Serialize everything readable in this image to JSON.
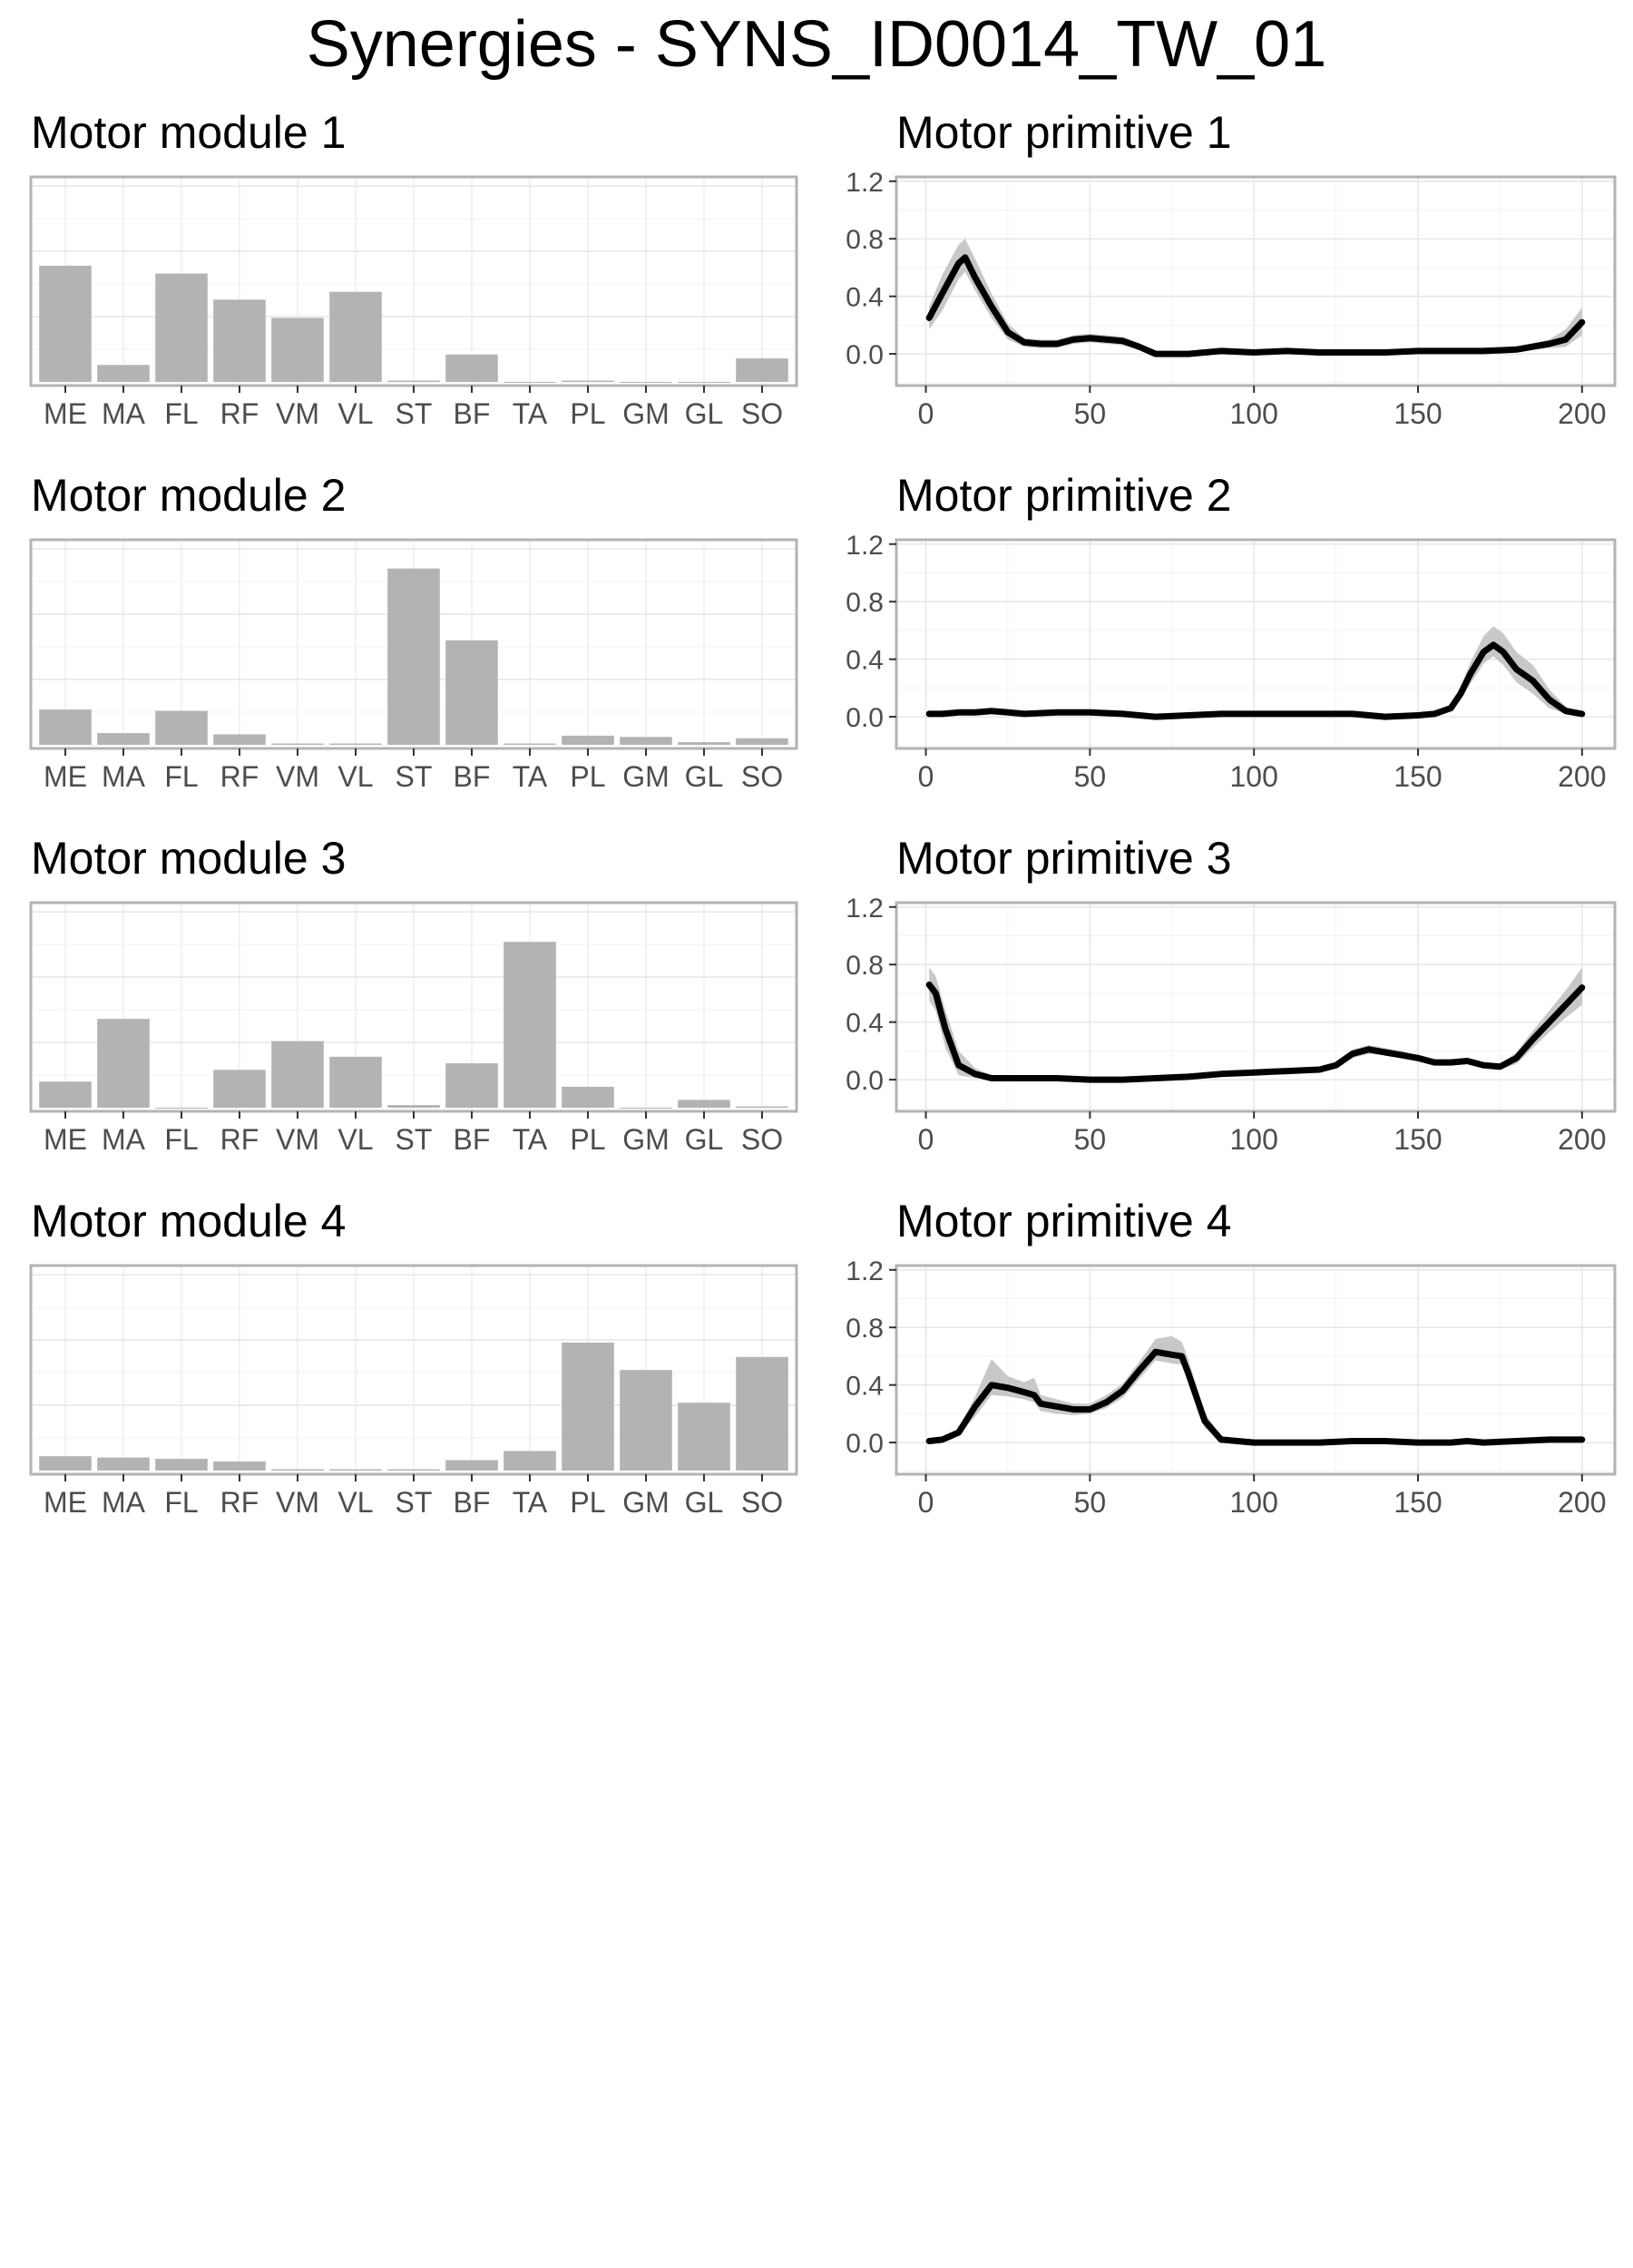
{
  "title": "Synergies - SYNS_ID0014_TW_01",
  "colors": {
    "bar": "#b3b3b3",
    "line": "#000000",
    "band": "#c8c8c8",
    "panel_border": "#b3b3b3",
    "grid_major": "#e6e6e6",
    "grid_minor": "#f2f2f2",
    "tick_text": "#4d4d4d"
  },
  "chart_data": [
    {
      "type": "bar",
      "title": "Motor module 1",
      "categories": [
        "ME",
        "MA",
        "FL",
        "RF",
        "VM",
        "VL",
        "ST",
        "BF",
        "TA",
        "PL",
        "GM",
        "GL",
        "SO"
      ],
      "values": [
        0.89,
        0.13,
        0.83,
        0.63,
        0.49,
        0.69,
        0.01,
        0.21,
        0.0,
        0.01,
        0.0,
        0.0,
        0.18
      ],
      "ylim": [
        0,
        1.57
      ],
      "grid": true
    },
    {
      "type": "line",
      "title": "Motor primitive 1",
      "x": [
        1,
        5,
        10,
        12,
        15,
        20,
        25,
        30,
        35,
        40,
        45,
        50,
        55,
        60,
        65,
        70,
        80,
        90,
        100,
        110,
        120,
        130,
        140,
        150,
        160,
        170,
        180,
        190,
        195,
        200
      ],
      "y": [
        0.25,
        0.42,
        0.63,
        0.67,
        0.53,
        0.33,
        0.15,
        0.08,
        0.07,
        0.07,
        0.1,
        0.11,
        0.1,
        0.09,
        0.05,
        0.0,
        0.0,
        0.02,
        0.01,
        0.02,
        0.01,
        0.01,
        0.01,
        0.02,
        0.02,
        0.02,
        0.03,
        0.07,
        0.1,
        0.22
      ],
      "band_low": [
        0.17,
        0.3,
        0.52,
        0.57,
        0.44,
        0.25,
        0.1,
        0.05,
        0.04,
        0.04,
        0.07,
        0.08,
        0.07,
        0.06,
        0.03,
        0.0,
        0.0,
        0.01,
        0.0,
        0.01,
        0.0,
        0.0,
        0.0,
        0.01,
        0.01,
        0.01,
        0.02,
        0.04,
        0.05,
        0.13
      ],
      "band_high": [
        0.33,
        0.55,
        0.76,
        0.8,
        0.66,
        0.42,
        0.21,
        0.11,
        0.1,
        0.1,
        0.13,
        0.14,
        0.13,
        0.12,
        0.07,
        0.01,
        0.01,
        0.03,
        0.02,
        0.03,
        0.02,
        0.02,
        0.02,
        0.03,
        0.03,
        0.03,
        0.05,
        0.1,
        0.17,
        0.32
      ],
      "xlim": [
        -9,
        210
      ],
      "ylim": [
        -0.22,
        1.23
      ],
      "xticks": [
        "0",
        "50",
        "100",
        "150",
        "200"
      ],
      "yticks": [
        "0.0",
        "0.4",
        "0.8",
        "1.2"
      ],
      "grid": true
    },
    {
      "type": "bar",
      "title": "Motor module 2",
      "categories": [
        "ME",
        "MA",
        "FL",
        "RF",
        "VM",
        "VL",
        "ST",
        "BF",
        "TA",
        "PL",
        "GM",
        "GL",
        "SO"
      ],
      "values": [
        0.27,
        0.09,
        0.26,
        0.08,
        0.01,
        0.01,
        1.35,
        0.8,
        0.01,
        0.07,
        0.06,
        0.02,
        0.05
      ],
      "ylim": [
        0,
        1.57
      ],
      "grid": true
    },
    {
      "type": "line",
      "title": "Motor primitive 2",
      "x": [
        1,
        5,
        10,
        15,
        20,
        25,
        30,
        40,
        50,
        60,
        70,
        80,
        90,
        100,
        110,
        120,
        130,
        140,
        150,
        155,
        160,
        163,
        166,
        170,
        173,
        176,
        180,
        185,
        190,
        195,
        200
      ],
      "y": [
        0.02,
        0.02,
        0.03,
        0.03,
        0.04,
        0.03,
        0.02,
        0.03,
        0.03,
        0.02,
        0.0,
        0.01,
        0.02,
        0.02,
        0.02,
        0.02,
        0.02,
        0.0,
        0.01,
        0.02,
        0.06,
        0.16,
        0.3,
        0.45,
        0.5,
        0.45,
        0.33,
        0.25,
        0.12,
        0.04,
        0.02
      ],
      "band_low": [
        0.01,
        0.01,
        0.02,
        0.02,
        0.03,
        0.02,
        0.01,
        0.02,
        0.02,
        0.01,
        0.0,
        0.0,
        0.01,
        0.01,
        0.01,
        0.01,
        0.01,
        0.0,
        0.0,
        0.01,
        0.04,
        0.12,
        0.23,
        0.37,
        0.42,
        0.36,
        0.24,
        0.16,
        0.06,
        0.02,
        0.01
      ],
      "band_high": [
        0.03,
        0.03,
        0.04,
        0.05,
        0.06,
        0.04,
        0.03,
        0.04,
        0.04,
        0.03,
        0.01,
        0.02,
        0.03,
        0.03,
        0.03,
        0.03,
        0.03,
        0.01,
        0.02,
        0.03,
        0.08,
        0.21,
        0.38,
        0.56,
        0.63,
        0.58,
        0.45,
        0.36,
        0.19,
        0.07,
        0.04
      ],
      "xlim": [
        -9,
        210
      ],
      "ylim": [
        -0.22,
        1.23
      ],
      "xticks": [
        "0",
        "50",
        "100",
        "150",
        "200"
      ],
      "yticks": [
        "0.0",
        "0.4",
        "0.8",
        "1.2"
      ],
      "grid": true
    },
    {
      "type": "bar",
      "title": "Motor module 3",
      "categories": [
        "ME",
        "MA",
        "FL",
        "RF",
        "VM",
        "VL",
        "ST",
        "BF",
        "TA",
        "PL",
        "GM",
        "GL",
        "SO"
      ],
      "values": [
        0.2,
        0.68,
        0.0,
        0.29,
        0.51,
        0.39,
        0.02,
        0.34,
        1.27,
        0.16,
        0.0,
        0.06,
        0.01
      ],
      "ylim": [
        0,
        1.57
      ],
      "grid": true
    },
    {
      "type": "line",
      "title": "Motor primitive 3",
      "x": [
        1,
        3,
        6,
        10,
        15,
        20,
        30,
        40,
        50,
        60,
        70,
        80,
        90,
        100,
        110,
        120,
        125,
        130,
        135,
        140,
        145,
        150,
        155,
        160,
        165,
        170,
        175,
        180,
        185,
        190,
        195,
        200
      ],
      "y": [
        0.66,
        0.6,
        0.35,
        0.1,
        0.04,
        0.01,
        0.01,
        0.01,
        0.0,
        0.0,
        0.01,
        0.02,
        0.04,
        0.05,
        0.06,
        0.07,
        0.1,
        0.18,
        0.21,
        0.19,
        0.17,
        0.15,
        0.12,
        0.12,
        0.13,
        0.1,
        0.09,
        0.15,
        0.28,
        0.4,
        0.52,
        0.64
      ],
      "band_low": [
        0.55,
        0.48,
        0.22,
        0.03,
        0.01,
        0.0,
        0.0,
        0.0,
        0.0,
        0.0,
        0.0,
        0.01,
        0.03,
        0.04,
        0.05,
        0.06,
        0.08,
        0.15,
        0.18,
        0.17,
        0.15,
        0.13,
        0.1,
        0.1,
        0.11,
        0.08,
        0.07,
        0.11,
        0.22,
        0.33,
        0.43,
        0.52
      ],
      "band_high": [
        0.78,
        0.72,
        0.48,
        0.2,
        0.08,
        0.03,
        0.02,
        0.02,
        0.01,
        0.01,
        0.02,
        0.03,
        0.05,
        0.06,
        0.07,
        0.08,
        0.12,
        0.21,
        0.24,
        0.22,
        0.2,
        0.17,
        0.14,
        0.14,
        0.15,
        0.12,
        0.11,
        0.19,
        0.34,
        0.48,
        0.62,
        0.78
      ],
      "xlim": [
        -9,
        210
      ],
      "ylim": [
        -0.22,
        1.23
      ],
      "xticks": [
        "0",
        "50",
        "100",
        "150",
        "200"
      ],
      "yticks": [
        "0.0",
        "0.4",
        "0.8",
        "1.2"
      ],
      "grid": true
    },
    {
      "type": "bar",
      "title": "Motor module 4",
      "categories": [
        "ME",
        "MA",
        "FL",
        "RF",
        "VM",
        "VL",
        "ST",
        "BF",
        "TA",
        "PL",
        "GM",
        "GL",
        "SO"
      ],
      "values": [
        0.11,
        0.1,
        0.09,
        0.07,
        0.01,
        0.01,
        0.01,
        0.08,
        0.15,
        0.98,
        0.77,
        0.52,
        0.87
      ],
      "ylim": [
        0,
        1.57
      ],
      "grid": true
    },
    {
      "type": "line",
      "title": "Motor primitive 4",
      "x": [
        1,
        5,
        10,
        15,
        20,
        25,
        30,
        33,
        35,
        40,
        45,
        50,
        55,
        60,
        65,
        70,
        75,
        78,
        80,
        85,
        90,
        95,
        100,
        110,
        120,
        130,
        140,
        150,
        160,
        165,
        170,
        180,
        190,
        200
      ],
      "y": [
        0.01,
        0.02,
        0.07,
        0.25,
        0.4,
        0.38,
        0.35,
        0.33,
        0.27,
        0.25,
        0.23,
        0.23,
        0.28,
        0.36,
        0.5,
        0.63,
        0.61,
        0.6,
        0.48,
        0.15,
        0.02,
        0.01,
        0.0,
        0.0,
        0.0,
        0.01,
        0.01,
        0.0,
        0.0,
        0.01,
        0.0,
        0.01,
        0.02,
        0.02
      ],
      "band_low": [
        0.0,
        0.01,
        0.05,
        0.18,
        0.33,
        0.32,
        0.3,
        0.28,
        0.22,
        0.2,
        0.19,
        0.2,
        0.24,
        0.31,
        0.44,
        0.57,
        0.55,
        0.54,
        0.42,
        0.1,
        0.01,
        0.0,
        0.0,
        0.0,
        0.0,
        0.0,
        0.0,
        0.0,
        0.0,
        0.0,
        0.0,
        0.0,
        0.01,
        0.01
      ],
      "band_high": [
        0.02,
        0.03,
        0.09,
        0.32,
        0.58,
        0.46,
        0.42,
        0.45,
        0.33,
        0.3,
        0.27,
        0.27,
        0.33,
        0.41,
        0.56,
        0.72,
        0.74,
        0.7,
        0.58,
        0.21,
        0.04,
        0.02,
        0.01,
        0.01,
        0.01,
        0.02,
        0.02,
        0.01,
        0.01,
        0.02,
        0.01,
        0.02,
        0.03,
        0.03
      ],
      "xlim": [
        -9,
        210
      ],
      "ylim": [
        -0.22,
        1.23
      ],
      "xticks": [
        "0",
        "50",
        "100",
        "150",
        "200"
      ],
      "yticks": [
        "0.0",
        "0.4",
        "0.8",
        "1.2"
      ],
      "grid": true
    }
  ]
}
